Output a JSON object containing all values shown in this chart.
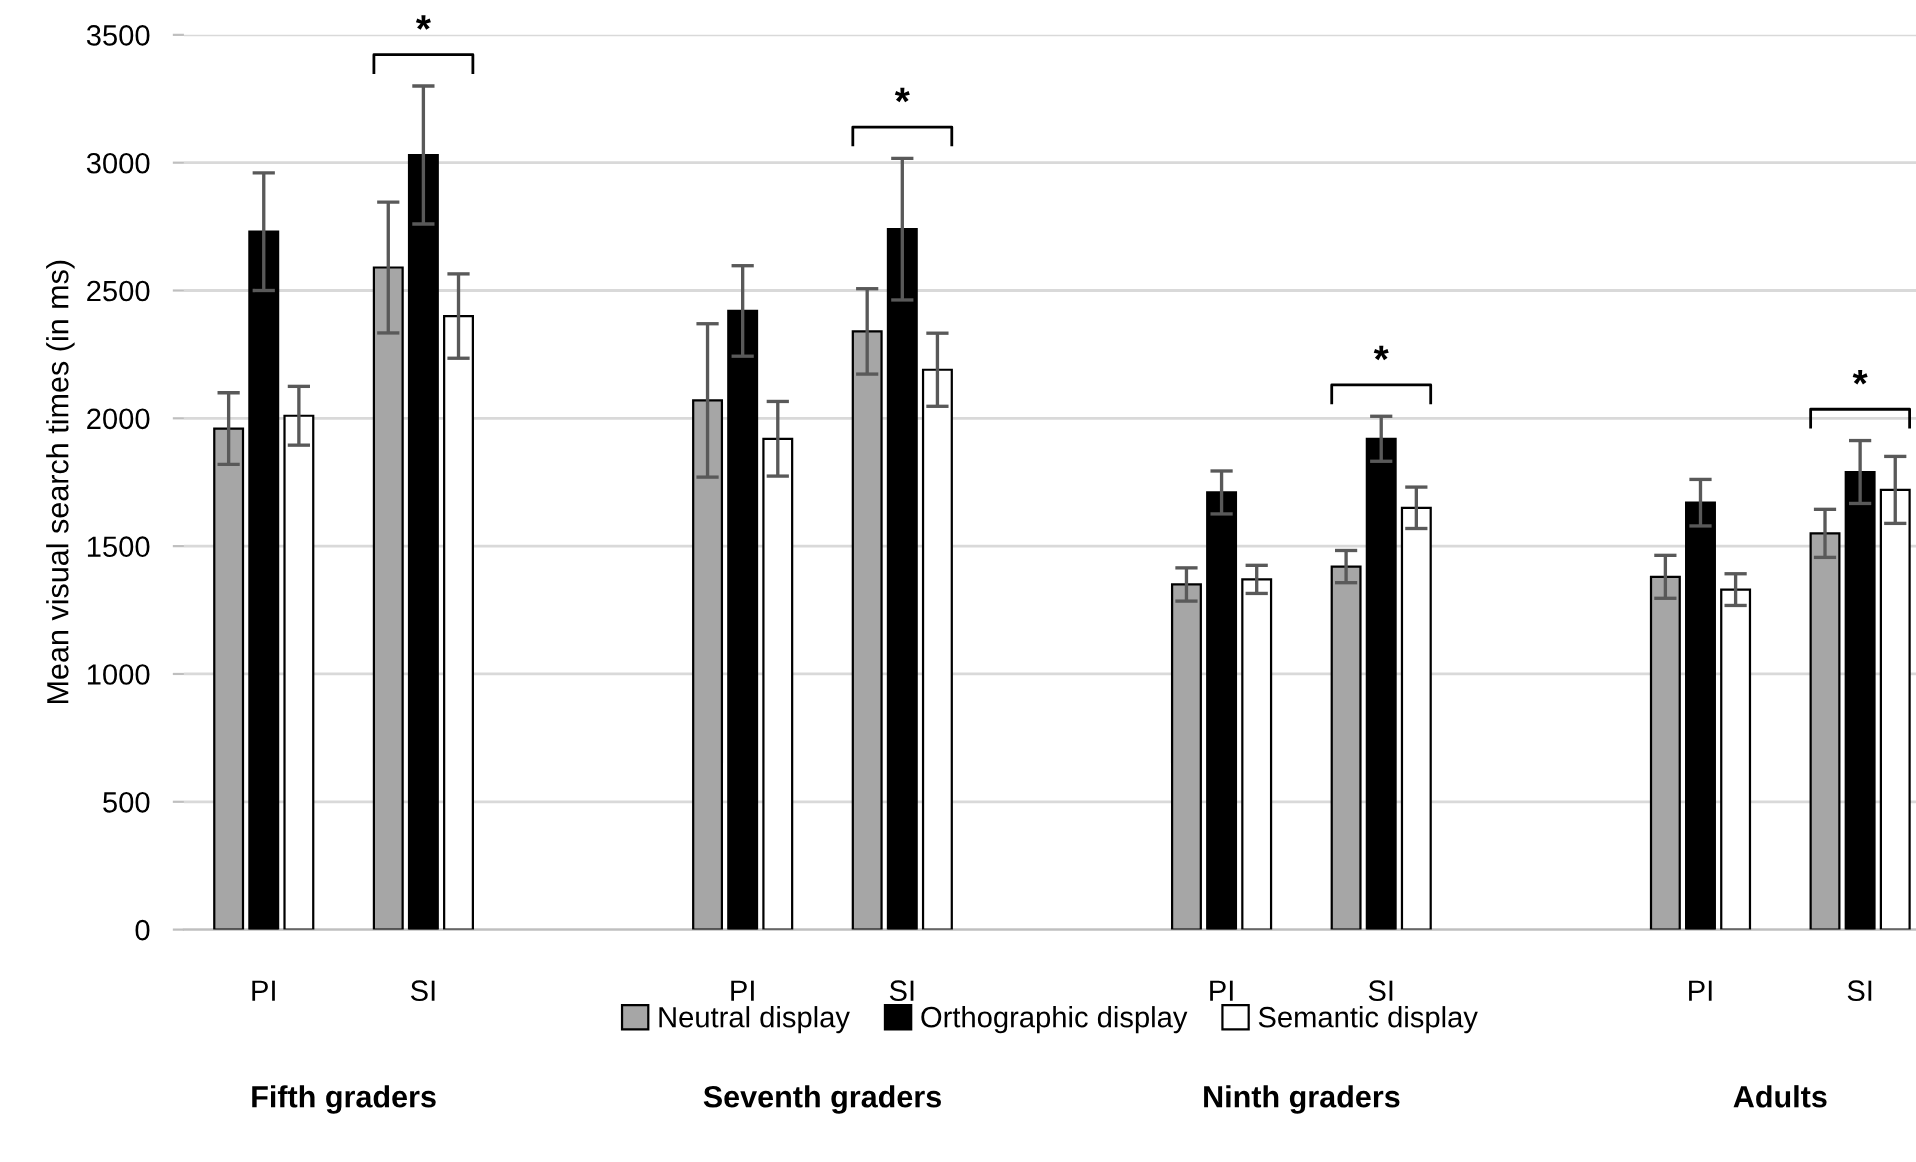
{
  "chart_data": {
    "type": "bar",
    "ylabel": "Mean visual search times (in ms)",
    "categories": [
      "PI",
      "SI",
      null,
      "PI",
      "SI",
      null,
      "PI",
      "SI",
      null,
      "PI",
      "SI"
    ],
    "series": [
      {
        "name": "Neutral display",
        "color": "#a6a6a6",
        "values": [
          1960,
          2590,
          null,
          2070,
          2340,
          null,
          1350,
          1420,
          null,
          1380,
          1550
        ],
        "errors": [
          140,
          256,
          null,
          300,
          167,
          null,
          65,
          63,
          null,
          84,
          94
        ]
      },
      {
        "name": "Orthographic display",
        "color": "#000000",
        "values": [
          2730,
          3030,
          null,
          2420,
          2740,
          null,
          1710,
          1920,
          null,
          1670,
          1790
        ],
        "errors": [
          230,
          270,
          null,
          177,
          277,
          null,
          84,
          88,
          null,
          91,
          123
        ]
      },
      {
        "name": "Semantic display",
        "color": "#ffffff",
        "values": [
          2010,
          2400,
          null,
          1920,
          2190,
          null,
          1370,
          1650,
          null,
          1330,
          1720
        ],
        "errors": [
          115,
          165,
          null,
          146,
          143,
          null,
          55,
          81,
          null,
          62,
          131
        ]
      }
    ],
    "ylim": [
      0,
      3500
    ],
    "yticks": [
      0,
      500,
      1000,
      1500,
      2000,
      2500,
      3000,
      3500
    ],
    "grid": "y",
    "legend": "bottom",
    "annotations": [
      "*",
      "*",
      "*",
      "*",
      "Fifth graders",
      "Seventh graders",
      "Ninth graders",
      "Adults"
    ]
  }
}
